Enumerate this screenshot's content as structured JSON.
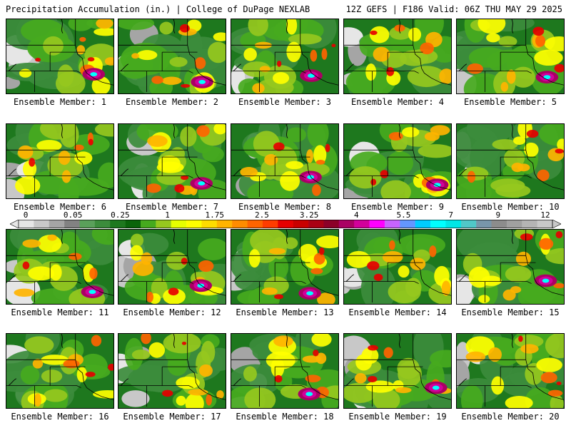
{
  "header": {
    "left": "Precipitation Accumulation (in.) | College of DuPage NEXLAB",
    "right": "12Z GEFS | F186 Valid: 06Z THU MAY 29 2025"
  },
  "panels": [
    {
      "label": "Ensemble Member: 1"
    },
    {
      "label": "Ensemble Member: 2"
    },
    {
      "label": "Ensemble Member: 3"
    },
    {
      "label": "Ensemble Member: 4"
    },
    {
      "label": "Ensemble Member: 5"
    },
    {
      "label": "Ensemble Member: 6"
    },
    {
      "label": "Ensemble Member: 7"
    },
    {
      "label": "Ensemble Member: 8"
    },
    {
      "label": "Ensemble Member: 9"
    },
    {
      "label": "Ensemble Member: 10"
    },
    {
      "label": "Ensemble Member: 11"
    },
    {
      "label": "Ensemble Member: 12"
    },
    {
      "label": "Ensemble Member: 13"
    },
    {
      "label": "Ensemble Member: 14"
    },
    {
      "label": "Ensemble Member: 15"
    },
    {
      "label": "Ensemble Member: 16"
    },
    {
      "label": "Ensemble Member: 17"
    },
    {
      "label": "Ensemble Member: 18"
    },
    {
      "label": "Ensemble Member: 19"
    },
    {
      "label": "Ensemble Member: 20"
    }
  ],
  "colorbar": {
    "ticks": [
      "0",
      "0.05",
      "0.25",
      "1",
      "1.75",
      "2.5",
      "3.25",
      "4",
      "5.5",
      "7",
      "9",
      "12"
    ],
    "colors": [
      "#e6e6e6",
      "#c8c8c8",
      "#a5a5a5",
      "#828282",
      "#5aa05a",
      "#3c8c3c",
      "#1e781e",
      "#0a640a",
      "#46aa1e",
      "#96c81e",
      "#e6ff00",
      "#ffff00",
      "#ffdc00",
      "#ffb400",
      "#ff8c00",
      "#ff6400",
      "#ff3c00",
      "#e60000",
      "#c80000",
      "#aa0014",
      "#8c0028",
      "#aa0064",
      "#d2009b",
      "#ff00ff",
      "#c864ff",
      "#6496ff",
      "#00ccff",
      "#00ffff",
      "#00e6e6",
      "#50c8c8",
      "#7896aa",
      "#8c8c8c",
      "#a0a0a0",
      "#b4b4b4",
      "#c8c8c8"
    ]
  }
}
